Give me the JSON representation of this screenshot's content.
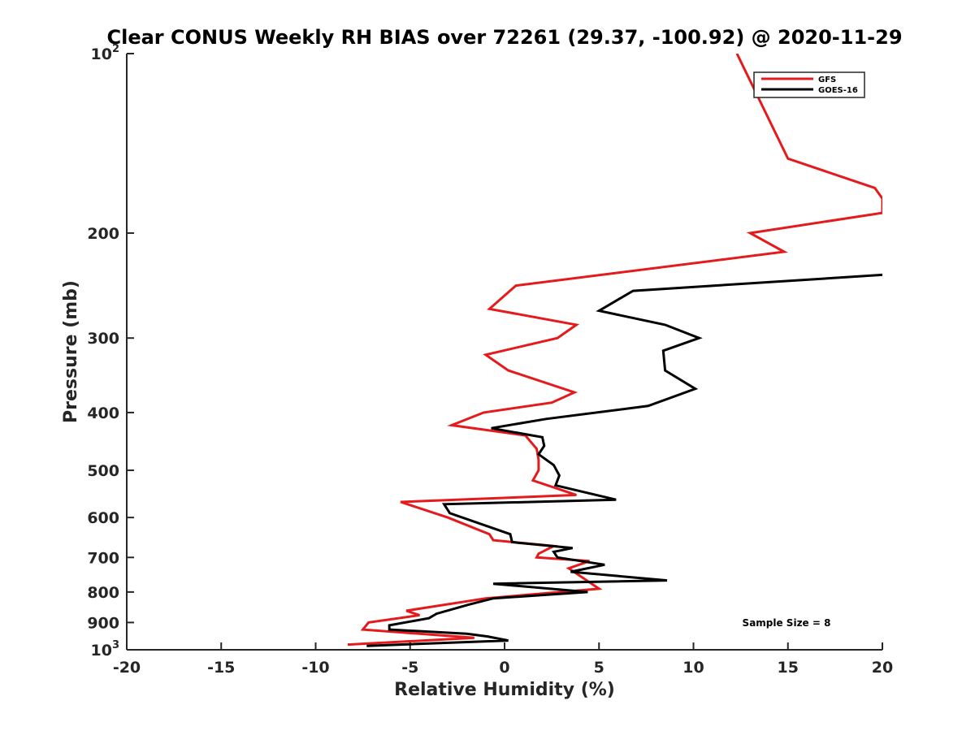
{
  "chart_data": {
    "type": "line",
    "title": "Clear CONUS Weekly RH BIAS over 72261 (29.37, -100.92) @ 2020-11-29",
    "xlabel": "Relative Humidity (%)",
    "ylabel": "Pressure (mb)",
    "xlim": [
      -20,
      20
    ],
    "ylim": [
      100,
      1000
    ],
    "y_scale": "log",
    "y_reversed": true,
    "grid": false,
    "xticks": [
      "-20",
      "-15",
      "-10",
      "-5",
      "0",
      "5",
      "10",
      "15",
      "20"
    ],
    "yticks": [
      {
        "value": 100,
        "base": "10",
        "exp": "2"
      },
      {
        "value": 200,
        "label": "200"
      },
      {
        "value": 300,
        "label": "300"
      },
      {
        "value": 400,
        "label": "400"
      },
      {
        "value": 500,
        "label": "500"
      },
      {
        "value": 600,
        "label": "600"
      },
      {
        "value": 700,
        "label": "700"
      },
      {
        "value": 800,
        "label": "800"
      },
      {
        "value": 900,
        "label": "900"
      },
      {
        "value": 1000,
        "base": "10",
        "exp": "3"
      }
    ],
    "legend_position": "top-right",
    "annotation": "Sample Size = 8",
    "series": [
      {
        "name": "GFS",
        "color": "#e41a1c",
        "x": [
          12.3,
          15.0,
          19.6,
          20.0,
          20.0,
          13.0,
          14.8,
          0.6,
          -0.8,
          3.8,
          2.8,
          -1.0,
          0.2,
          3.7,
          2.5,
          -1.1,
          -2.8,
          1.1,
          1.7,
          1.8,
          1.8,
          1.5,
          3.8,
          -5.5,
          -3.0,
          -0.8,
          -0.6,
          2.6,
          1.8,
          1.7,
          4.5,
          3.4,
          5.0,
          -1.0,
          -5.2,
          -4.5,
          -7.2,
          -7.5,
          -1.6,
          -8.3
        ],
        "y": [
          100,
          150,
          168,
          175,
          185,
          200,
          215,
          245,
          268,
          285,
          300,
          320,
          340,
          370,
          385,
          400,
          420,
          437,
          460,
          480,
          500,
          520,
          550,
          565,
          600,
          640,
          655,
          670,
          690,
          700,
          710,
          730,
          790,
          820,
          860,
          875,
          900,
          925,
          955,
          980
        ]
      },
      {
        "name": "GOES-16",
        "color": "#000000",
        "x": [
          20.0,
          6.8,
          5.0,
          8.5,
          10.3,
          8.4,
          8.5,
          10.1,
          7.6,
          2.2,
          -0.7,
          2.0,
          2.1,
          1.8,
          2.6,
          2.9,
          2.7,
          5.9,
          -3.2,
          -2.9,
          0.3,
          0.4,
          3.6,
          2.6,
          2.8,
          5.3,
          3.5,
          8.6,
          -0.6,
          4.4,
          -0.6,
          -1.9,
          -3.6,
          -4.0,
          -6.1,
          -6.1,
          -2.0,
          -0.9,
          0.2,
          -7.3
        ],
        "y": [
          235,
          250,
          270,
          285,
          300,
          315,
          340,
          365,
          390,
          410,
          425,
          440,
          455,
          470,
          490,
          510,
          530,
          560,
          570,
          590,
          640,
          660,
          675,
          685,
          700,
          720,
          740,
          765,
          775,
          800,
          820,
          840,
          870,
          885,
          910,
          925,
          940,
          950,
          965,
          985
        ]
      }
    ]
  }
}
